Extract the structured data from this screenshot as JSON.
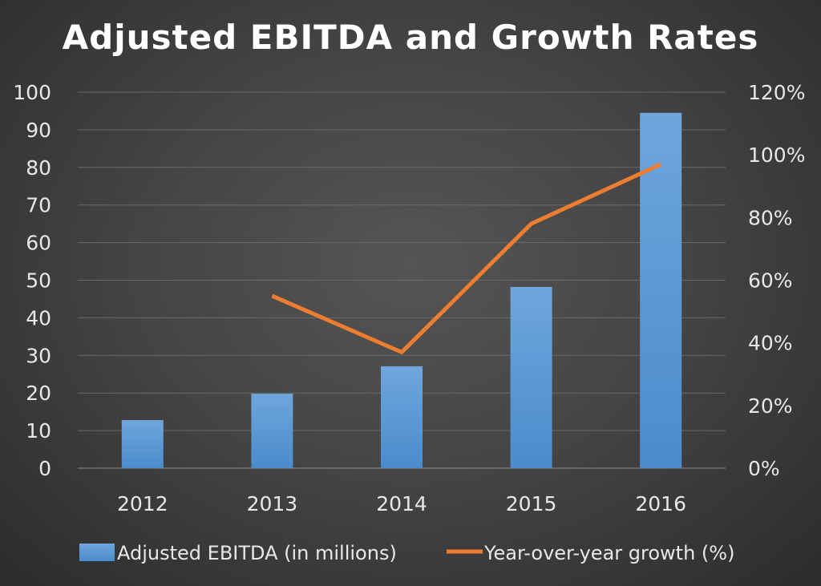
{
  "chart_data": {
    "type": "bar+line",
    "title": "Adjusted EBITDA and Growth Rates",
    "categories": [
      "2012",
      "2013",
      "2014",
      "2015",
      "2016"
    ],
    "series": [
      {
        "name": "Adjusted EBITDA (in millions)",
        "type": "bar",
        "axis": "left",
        "values": [
          12.8,
          19.8,
          27.1,
          48.2,
          94.5
        ],
        "color": "#5b9bd5"
      },
      {
        "name": "Year-over-year growth (%)",
        "type": "line",
        "axis": "right",
        "values": [
          null,
          55,
          37,
          78,
          97
        ],
        "color": "#ed7d31"
      }
    ],
    "left_axis": {
      "ylim": [
        0,
        100
      ],
      "ticks": [
        "0",
        "10",
        "20",
        "30",
        "40",
        "50",
        "60",
        "70",
        "80",
        "90",
        "100"
      ]
    },
    "right_axis": {
      "ylim": [
        0,
        120
      ],
      "ticks": [
        "0%",
        "20%",
        "40%",
        "60%",
        "80%",
        "100%",
        "120%"
      ]
    },
    "grid": true,
    "legend": "bottom"
  }
}
